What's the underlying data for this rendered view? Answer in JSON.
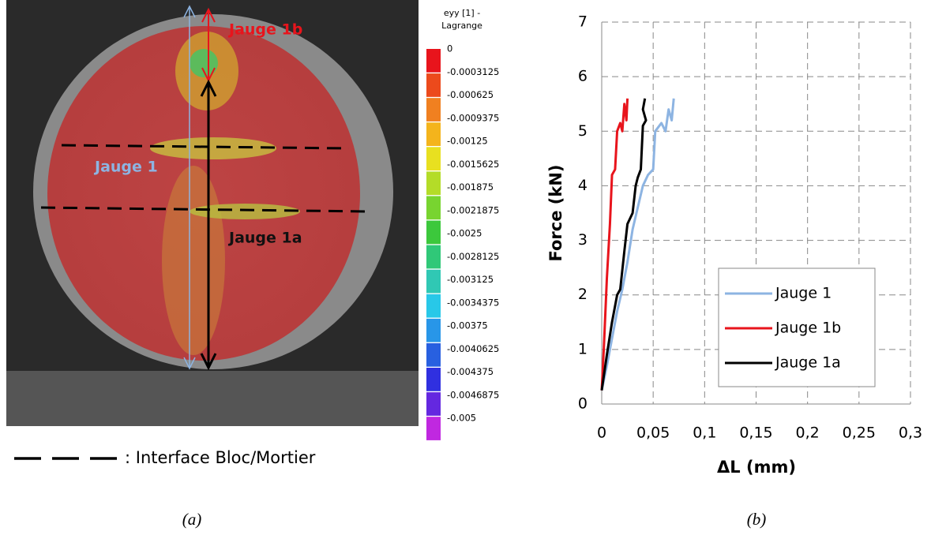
{
  "figure_a": {
    "annotations": {
      "gauge_1b": "Jauge 1b",
      "gauge_1": "Jauge 1",
      "gauge_1a": "Jauge 1a"
    },
    "colorbar": {
      "title_lines": [
        "eyy [1] -",
        "Lagrange"
      ],
      "ticks": [
        0,
        -0.0003125,
        -0.000625,
        -0.0009375,
        -0.00125,
        -0.0015625,
        -0.001875,
        -0.0021875,
        -0.0025,
        -0.0028125,
        -0.003125,
        -0.0034375,
        -0.00375,
        -0.0040625,
        -0.004375,
        -0.0046875,
        -0.005
      ],
      "colors": [
        "#e8141c",
        "#ec4a1c",
        "#f08020",
        "#f4b41c",
        "#e8e020",
        "#b4dc28",
        "#78d430",
        "#3cc83c",
        "#30c878",
        "#30c8b4",
        "#28c8e8",
        "#2896e8",
        "#2860e0",
        "#3030e0",
        "#6428e0",
        "#c028e0"
      ]
    },
    "legend_text": ": Interface Bloc/Mortier",
    "caption": "(a)"
  },
  "chart_data": {
    "type": "line",
    "caption": "(b)",
    "x_label": "ΔL (mm)",
    "y_label": "Force (kN)",
    "xlim": [
      0,
      0.3
    ],
    "ylim": [
      0,
      7
    ],
    "xticks": [
      0,
      {
        "value": 0.05,
        "label": "0,05"
      },
      {
        "value": 0.1,
        "label": "0,1"
      },
      {
        "value": 0.15,
        "label": "0,15"
      },
      {
        "value": 0.2,
        "label": "0,2"
      },
      {
        "value": 0.25,
        "label": "0,25"
      },
      {
        "value": 0.3,
        "label": "0,3"
      }
    ],
    "yticks": [
      0,
      1,
      2,
      3,
      4,
      5,
      6,
      7
    ],
    "grid": true,
    "legend": "lower right",
    "series": [
      {
        "name": "Jauge 1",
        "color": "#8db4e2",
        "x": [
          0,
          0.005,
          0.01,
          0.015,
          0.02,
          0.025,
          0.03,
          0.035,
          0.04,
          0.045,
          0.05,
          0.052,
          0.058,
          0.062,
          0.065,
          0.068,
          0.07
        ],
        "values": [
          0.25,
          0.7,
          1.2,
          1.7,
          2.1,
          2.6,
          3.2,
          3.6,
          4.0,
          4.2,
          4.3,
          5.0,
          5.15,
          5.0,
          5.4,
          5.2,
          5.6
        ]
      },
      {
        "name": "Jauge 1b",
        "color": "#e8141c",
        "x": [
          0,
          0.002,
          0.005,
          0.008,
          0.01,
          0.013,
          0.015,
          0.018,
          0.02,
          0.022,
          0.024,
          0.025
        ],
        "values": [
          0.25,
          1.0,
          2.3,
          3.3,
          4.2,
          4.3,
          5.0,
          5.15,
          5.0,
          5.5,
          5.2,
          5.6
        ]
      },
      {
        "name": "Jauge 1a",
        "color": "#000000",
        "x": [
          0,
          0.005,
          0.01,
          0.015,
          0.018,
          0.022,
          0.025,
          0.03,
          0.033,
          0.035,
          0.038,
          0.04,
          0.043,
          0.04,
          0.042
        ],
        "values": [
          0.25,
          0.9,
          1.5,
          2.0,
          2.1,
          2.8,
          3.3,
          3.5,
          4.0,
          4.15,
          4.3,
          5.1,
          5.2,
          5.4,
          5.6
        ]
      }
    ]
  }
}
